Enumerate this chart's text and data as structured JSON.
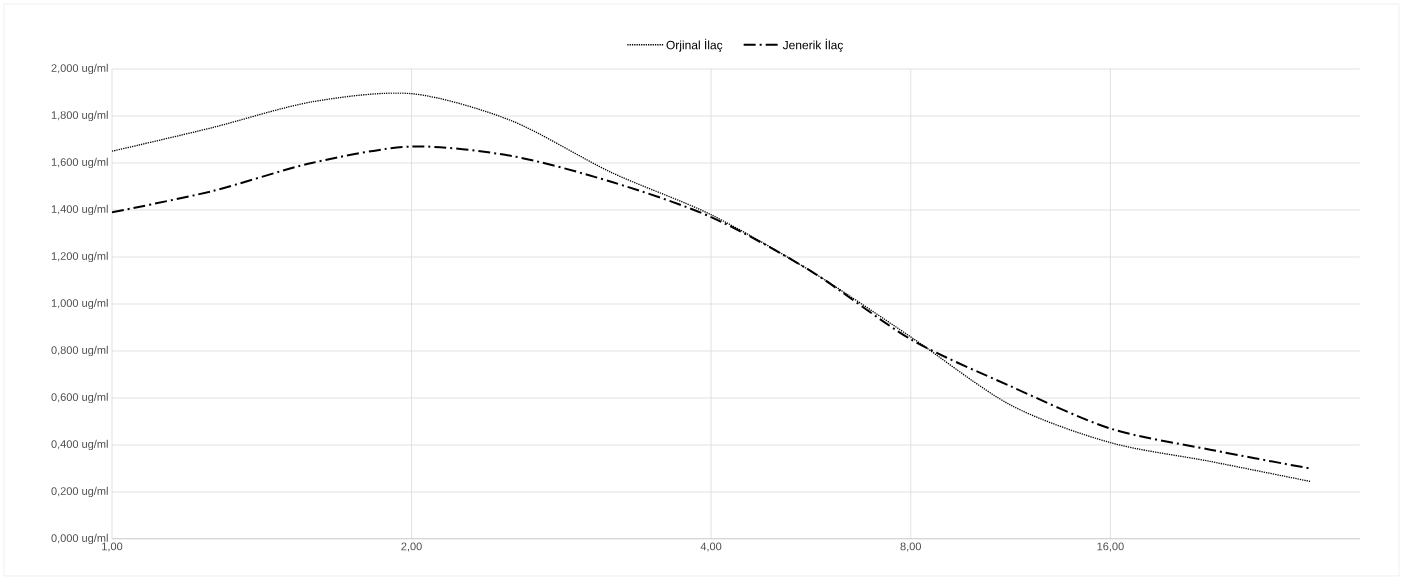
{
  "chart_data": {
    "type": "line",
    "categories": [
      "1,00",
      null,
      null,
      "2,00",
      null,
      null,
      "4,00",
      null,
      "8,00",
      null,
      "16,00",
      null,
      null
    ],
    "series": [
      {
        "name": "Orjinal İlaç",
        "color": "#000000",
        "line_style": "dotted",
        "values": [
          1.65,
          1.75,
          1.86,
          1.895,
          1.78,
          1.56,
          1.38,
          1.14,
          0.86,
          0.57,
          0.41,
          0.33,
          0.245
        ]
      },
      {
        "name": "Jenerik İlaç",
        "color": "#000000",
        "line_style": "dashdot",
        "values": [
          1.39,
          1.48,
          1.6,
          1.67,
          1.63,
          1.52,
          1.37,
          1.14,
          0.85,
          0.65,
          0.47,
          0.38,
          0.3
        ]
      }
    ],
    "ylim": [
      0,
      2
    ],
    "yticks": [
      {
        "value": 0,
        "label": "0,000 ug/ml"
      },
      {
        "value": 0.2,
        "label": "0,200 ug/ml"
      },
      {
        "value": 0.4,
        "label": "0,400 ug/ml"
      },
      {
        "value": 0.6,
        "label": "0,600 ug/ml"
      },
      {
        "value": 0.8,
        "label": "0,800 ug/ml"
      },
      {
        "value": 1.0,
        "label": "1,000 ug/ml"
      },
      {
        "value": 1.2,
        "label": "1,200 ug/ml"
      },
      {
        "value": 1.4,
        "label": "1,400 ug/ml"
      },
      {
        "value": 1.6,
        "label": "1,600 ug/ml"
      },
      {
        "value": 1.8,
        "label": "1,800 ug/ml"
      },
      {
        "value": 2.0,
        "label": "2,000 ug/ml"
      }
    ],
    "grid": true,
    "legend": "top"
  }
}
